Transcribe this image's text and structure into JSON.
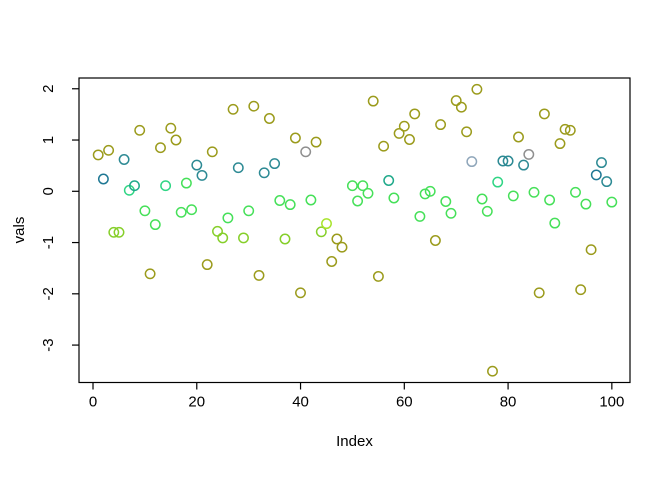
{
  "figure": {
    "background": "#ffffff",
    "axis_color": "#000000",
    "text_color": "#000000"
  },
  "chart_data": {
    "type": "scatter",
    "title": "",
    "xlabel": "Index",
    "ylabel": "vals",
    "x_ticks": [
      0,
      20,
      40,
      60,
      80,
      100
    ],
    "y_ticks": [
      -3,
      -2,
      -1,
      0,
      1,
      2
    ],
    "xlim": [
      -2.7,
      103.5
    ],
    "ylim": [
      -3.73,
      2.21
    ],
    "grid": false,
    "legend": false,
    "marker": "open-circle",
    "palette": {
      "olive": "#9b9b1c",
      "yellowgreen": "#86cf2a",
      "chartreuse": "#a8e42c",
      "green": "#46e059",
      "springgreen": "#2fd584",
      "seagreen": "#1fa98a",
      "teal": "#2d8a94",
      "darkteal": "#1f7894",
      "steelblue": "#8fa6ba",
      "gray": "#8f8f8f"
    },
    "points": [
      {
        "x": 1,
        "y": 0.71,
        "c": "olive"
      },
      {
        "x": 2,
        "y": 0.24,
        "c": "darkteal"
      },
      {
        "x": 3,
        "y": 0.8,
        "c": "olive"
      },
      {
        "x": 4,
        "y": -0.8,
        "c": "yellowgreen"
      },
      {
        "x": 5,
        "y": -0.8,
        "c": "yellowgreen"
      },
      {
        "x": 6,
        "y": 0.62,
        "c": "teal"
      },
      {
        "x": 7,
        "y": 0.02,
        "c": "springgreen"
      },
      {
        "x": 8,
        "y": 0.11,
        "c": "seagreen"
      },
      {
        "x": 9,
        "y": 1.19,
        "c": "olive"
      },
      {
        "x": 10,
        "y": -0.38,
        "c": "green"
      },
      {
        "x": 11,
        "y": -1.61,
        "c": "olive"
      },
      {
        "x": 12,
        "y": -0.65,
        "c": "green"
      },
      {
        "x": 13,
        "y": 0.85,
        "c": "olive"
      },
      {
        "x": 14,
        "y": 0.11,
        "c": "springgreen"
      },
      {
        "x": 15,
        "y": 1.23,
        "c": "olive"
      },
      {
        "x": 16,
        "y": 1.0,
        "c": "olive"
      },
      {
        "x": 17,
        "y": -0.41,
        "c": "green"
      },
      {
        "x": 18,
        "y": 0.16,
        "c": "green"
      },
      {
        "x": 19,
        "y": -0.36,
        "c": "green"
      },
      {
        "x": 20,
        "y": 0.51,
        "c": "teal"
      },
      {
        "x": 21,
        "y": 0.31,
        "c": "teal"
      },
      {
        "x": 22,
        "y": -1.43,
        "c": "olive"
      },
      {
        "x": 23,
        "y": 0.77,
        "c": "olive"
      },
      {
        "x": 24,
        "y": -0.78,
        "c": "yellowgreen"
      },
      {
        "x": 25,
        "y": -0.91,
        "c": "yellowgreen"
      },
      {
        "x": 26,
        "y": -0.52,
        "c": "green"
      },
      {
        "x": 27,
        "y": 1.6,
        "c": "olive"
      },
      {
        "x": 28,
        "y": 0.46,
        "c": "teal"
      },
      {
        "x": 29,
        "y": -0.91,
        "c": "yellowgreen"
      },
      {
        "x": 30,
        "y": -0.38,
        "c": "green"
      },
      {
        "x": 31,
        "y": 1.66,
        "c": "olive"
      },
      {
        "x": 32,
        "y": -1.64,
        "c": "olive"
      },
      {
        "x": 33,
        "y": 0.36,
        "c": "teal"
      },
      {
        "x": 34,
        "y": 1.42,
        "c": "olive"
      },
      {
        "x": 35,
        "y": 0.54,
        "c": "teal"
      },
      {
        "x": 36,
        "y": -0.18,
        "c": "green"
      },
      {
        "x": 37,
        "y": -0.93,
        "c": "yellowgreen"
      },
      {
        "x": 38,
        "y": -0.26,
        "c": "green"
      },
      {
        "x": 39,
        "y": 1.04,
        "c": "olive"
      },
      {
        "x": 40,
        "y": -1.98,
        "c": "olive"
      },
      {
        "x": 41,
        "y": 0.77,
        "c": "gray"
      },
      {
        "x": 42,
        "y": -0.17,
        "c": "green"
      },
      {
        "x": 43,
        "y": 0.96,
        "c": "olive"
      },
      {
        "x": 44,
        "y": -0.79,
        "c": "yellowgreen"
      },
      {
        "x": 45,
        "y": -0.63,
        "c": "chartreuse"
      },
      {
        "x": 46,
        "y": -1.37,
        "c": "olive"
      },
      {
        "x": 47,
        "y": -0.93,
        "c": "olive"
      },
      {
        "x": 48,
        "y": -1.09,
        "c": "olive"
      },
      {
        "x": 50,
        "y": 0.11,
        "c": "green"
      },
      {
        "x": 51,
        "y": -0.19,
        "c": "green"
      },
      {
        "x": 52,
        "y": 0.11,
        "c": "green"
      },
      {
        "x": 53,
        "y": -0.04,
        "c": "green"
      },
      {
        "x": 54,
        "y": 1.76,
        "c": "olive"
      },
      {
        "x": 55,
        "y": -1.66,
        "c": "olive"
      },
      {
        "x": 56,
        "y": 0.88,
        "c": "olive"
      },
      {
        "x": 57,
        "y": 0.21,
        "c": "seagreen"
      },
      {
        "x": 58,
        "y": -0.13,
        "c": "green"
      },
      {
        "x": 59,
        "y": 1.13,
        "c": "olive"
      },
      {
        "x": 60,
        "y": 1.27,
        "c": "olive"
      },
      {
        "x": 61,
        "y": 1.01,
        "c": "olive"
      },
      {
        "x": 62,
        "y": 1.51,
        "c": "olive"
      },
      {
        "x": 63,
        "y": -0.49,
        "c": "green"
      },
      {
        "x": 64,
        "y": -0.05,
        "c": "green"
      },
      {
        "x": 65,
        "y": 0.0,
        "c": "green"
      },
      {
        "x": 66,
        "y": -0.96,
        "c": "olive"
      },
      {
        "x": 67,
        "y": 1.3,
        "c": "olive"
      },
      {
        "x": 68,
        "y": -0.2,
        "c": "green"
      },
      {
        "x": 69,
        "y": -0.43,
        "c": "green"
      },
      {
        "x": 70,
        "y": 1.77,
        "c": "olive"
      },
      {
        "x": 71,
        "y": 1.64,
        "c": "olive"
      },
      {
        "x": 72,
        "y": 1.16,
        "c": "olive"
      },
      {
        "x": 73,
        "y": 0.58,
        "c": "steelblue"
      },
      {
        "x": 74,
        "y": 1.99,
        "c": "olive"
      },
      {
        "x": 75,
        "y": -0.15,
        "c": "green"
      },
      {
        "x": 76,
        "y": -0.39,
        "c": "green"
      },
      {
        "x": 77,
        "y": -3.51,
        "c": "olive"
      },
      {
        "x": 78,
        "y": 0.18,
        "c": "springgreen"
      },
      {
        "x": 79,
        "y": 0.59,
        "c": "teal"
      },
      {
        "x": 80,
        "y": 0.59,
        "c": "teal"
      },
      {
        "x": 81,
        "y": -0.09,
        "c": "green"
      },
      {
        "x": 82,
        "y": 1.06,
        "c": "olive"
      },
      {
        "x": 83,
        "y": 0.51,
        "c": "teal"
      },
      {
        "x": 84,
        "y": 0.72,
        "c": "gray"
      },
      {
        "x": 85,
        "y": -0.02,
        "c": "green"
      },
      {
        "x": 86,
        "y": -1.98,
        "c": "olive"
      },
      {
        "x": 87,
        "y": 1.51,
        "c": "olive"
      },
      {
        "x": 88,
        "y": -0.17,
        "c": "green"
      },
      {
        "x": 89,
        "y": -0.62,
        "c": "green"
      },
      {
        "x": 90,
        "y": 0.93,
        "c": "olive"
      },
      {
        "x": 91,
        "y": 1.21,
        "c": "olive"
      },
      {
        "x": 92,
        "y": 1.19,
        "c": "olive"
      },
      {
        "x": 93,
        "y": -0.02,
        "c": "green"
      },
      {
        "x": 94,
        "y": -1.92,
        "c": "olive"
      },
      {
        "x": 95,
        "y": -0.25,
        "c": "green"
      },
      {
        "x": 96,
        "y": -1.14,
        "c": "olive"
      },
      {
        "x": 97,
        "y": 0.32,
        "c": "darkteal"
      },
      {
        "x": 98,
        "y": 0.56,
        "c": "teal"
      },
      {
        "x": 99,
        "y": 0.19,
        "c": "teal"
      },
      {
        "x": 100,
        "y": -0.21,
        "c": "green"
      }
    ]
  }
}
